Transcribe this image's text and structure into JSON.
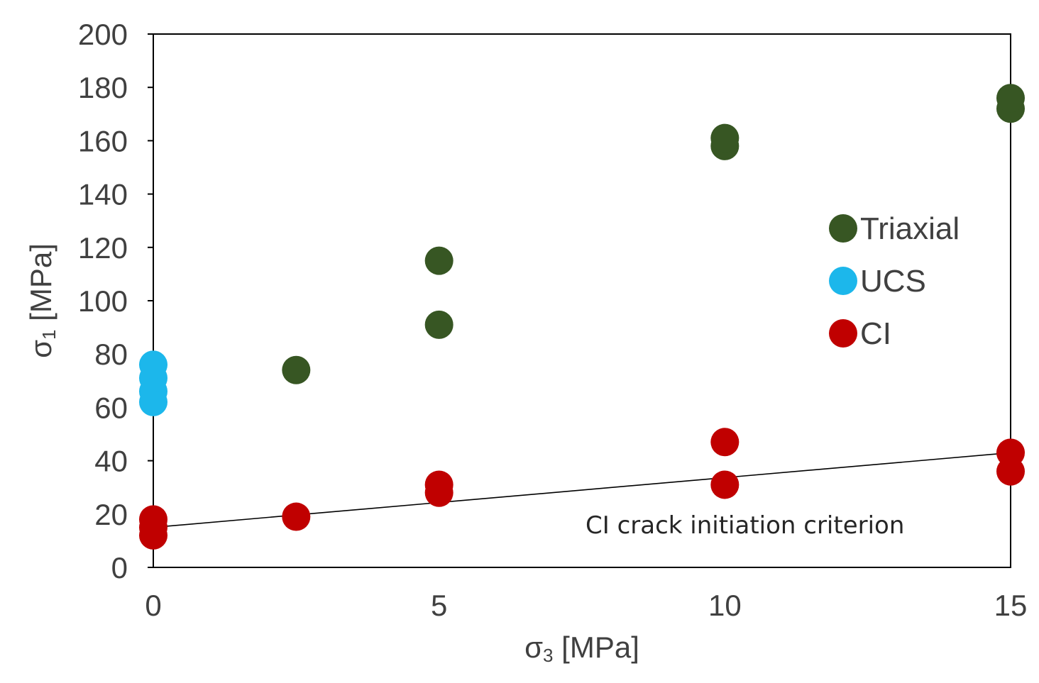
{
  "chart_data": {
    "type": "scatter",
    "title": "",
    "xlabel": {
      "sym": "σ",
      "sub": "3",
      "unit": " [MPa]"
    },
    "ylabel": {
      "sym": "σ",
      "sub": "1",
      "unit": " [MPa]"
    },
    "xlim": [
      0,
      15
    ],
    "ylim": [
      0,
      200
    ],
    "xticks": [
      0,
      5,
      10,
      15
    ],
    "yticks": [
      0,
      20,
      40,
      60,
      80,
      100,
      120,
      140,
      160,
      180,
      200
    ],
    "grid": false,
    "legend_position": "right",
    "series": [
      {
        "name": "Triaxial",
        "color": "#375623",
        "points": [
          [
            2.5,
            74
          ],
          [
            5,
            91
          ],
          [
            5,
            115
          ],
          [
            10,
            158
          ],
          [
            10,
            161
          ],
          [
            15,
            172
          ],
          [
            15,
            176
          ]
        ]
      },
      {
        "name": "UCS",
        "color": "#1CB7EB",
        "points": [
          [
            0,
            62
          ],
          [
            0,
            66
          ],
          [
            0,
            71
          ],
          [
            0,
            76
          ]
        ]
      },
      {
        "name": "CI",
        "color": "#C00000",
        "points": [
          [
            0,
            12
          ],
          [
            0,
            15
          ],
          [
            0,
            18
          ],
          [
            2.5,
            19
          ],
          [
            5,
            28
          ],
          [
            5,
            31
          ],
          [
            10,
            31
          ],
          [
            10,
            47
          ],
          [
            15,
            36
          ],
          [
            15,
            43
          ]
        ]
      }
    ],
    "trendline": {
      "label": "CI crack initiation criterion",
      "color": "#000000",
      "from": [
        0,
        15
      ],
      "to": [
        15,
        43
      ]
    }
  }
}
